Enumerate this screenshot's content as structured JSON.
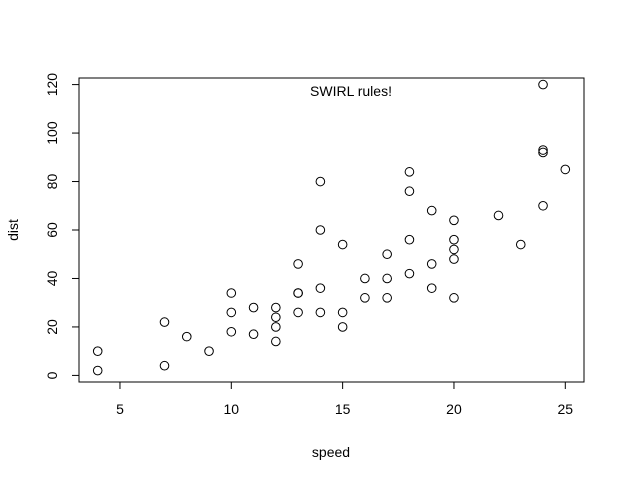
{
  "chart_data": {
    "type": "scatter",
    "title": "",
    "xlabel": "speed",
    "ylabel": "dist",
    "annotation": "SWIRL rules!",
    "xlim": [
      3.16,
      25.84
    ],
    "ylim": [
      -2.72,
      122.72
    ],
    "xticks": [
      "5",
      "10",
      "15",
      "20",
      "25"
    ],
    "yticks": [
      "0",
      "20",
      "40",
      "60",
      "80",
      "100",
      "120"
    ],
    "xtick_values": [
      5,
      10,
      15,
      20,
      25
    ],
    "ytick_values": [
      0,
      20,
      40,
      60,
      80,
      100,
      120
    ],
    "grid": false,
    "marker": "open-circle",
    "points": [
      [
        4,
        2
      ],
      [
        4,
        10
      ],
      [
        7,
        4
      ],
      [
        7,
        22
      ],
      [
        8,
        16
      ],
      [
        9,
        10
      ],
      [
        10,
        18
      ],
      [
        10,
        26
      ],
      [
        10,
        34
      ],
      [
        11,
        17
      ],
      [
        11,
        28
      ],
      [
        12,
        14
      ],
      [
        12,
        20
      ],
      [
        12,
        24
      ],
      [
        12,
        28
      ],
      [
        13,
        26
      ],
      [
        13,
        34
      ],
      [
        13,
        34
      ],
      [
        13,
        46
      ],
      [
        14,
        26
      ],
      [
        14,
        36
      ],
      [
        14,
        60
      ],
      [
        14,
        80
      ],
      [
        15,
        20
      ],
      [
        15,
        26
      ],
      [
        15,
        54
      ],
      [
        16,
        32
      ],
      [
        16,
        40
      ],
      [
        17,
        32
      ],
      [
        17,
        40
      ],
      [
        17,
        50
      ],
      [
        18,
        42
      ],
      [
        18,
        56
      ],
      [
        18,
        76
      ],
      [
        18,
        84
      ],
      [
        19,
        36
      ],
      [
        19,
        46
      ],
      [
        19,
        68
      ],
      [
        20,
        32
      ],
      [
        20,
        48
      ],
      [
        20,
        52
      ],
      [
        20,
        56
      ],
      [
        20,
        64
      ],
      [
        22,
        66
      ],
      [
        23,
        54
      ],
      [
        24,
        70
      ],
      [
        24,
        92
      ],
      [
        24,
        93
      ],
      [
        24,
        120
      ],
      [
        25,
        85
      ]
    ]
  }
}
